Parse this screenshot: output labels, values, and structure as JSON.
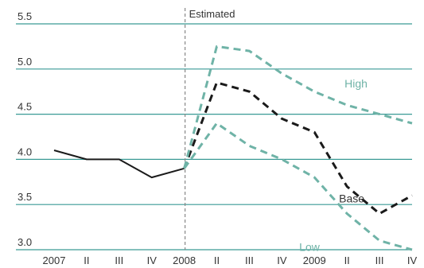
{
  "colors": {
    "grid": "#3a9a95",
    "base": "#1a1a1a",
    "scenario": "#6fb3a7",
    "marker": "#888888",
    "text": "#333333"
  },
  "chart_data": {
    "type": "line",
    "categories": [
      "2007",
      "II",
      "III",
      "IV",
      "2008",
      "II",
      "III",
      "IV",
      "2009",
      "II",
      "III",
      "IV"
    ],
    "ylim": [
      3.0,
      5.5
    ],
    "yticks": [
      "5.5",
      "5.0",
      "4.5",
      "4.0",
      "3.5",
      "3.0"
    ],
    "grid": true,
    "annotation": {
      "label": "Estimated",
      "at_category": "2008"
    },
    "series": [
      {
        "id": "history",
        "values": [
          4.1,
          4.0,
          4.0,
          3.8,
          3.9,
          null,
          null,
          null,
          null,
          null,
          null,
          null
        ],
        "style": "solid",
        "color": "#1a1a1a"
      },
      {
        "id": "base",
        "name": "Base",
        "values": [
          null,
          null,
          null,
          null,
          3.9,
          4.85,
          4.75,
          4.45,
          4.3,
          3.7,
          3.4,
          3.6
        ],
        "style": "dashed",
        "color": "#1a1a1a"
      },
      {
        "id": "high",
        "name": "High",
        "values": [
          null,
          null,
          null,
          null,
          3.9,
          5.25,
          5.2,
          4.95,
          4.75,
          4.6,
          4.5,
          4.4
        ],
        "style": "dashed",
        "color": "#6fb3a7"
      },
      {
        "id": "low",
        "name": "Low",
        "values": [
          null,
          null,
          null,
          null,
          3.9,
          4.4,
          4.15,
          4.0,
          3.8,
          3.4,
          3.1,
          3.0
        ],
        "style": "dashed",
        "color": "#6fb3a7"
      }
    ]
  }
}
